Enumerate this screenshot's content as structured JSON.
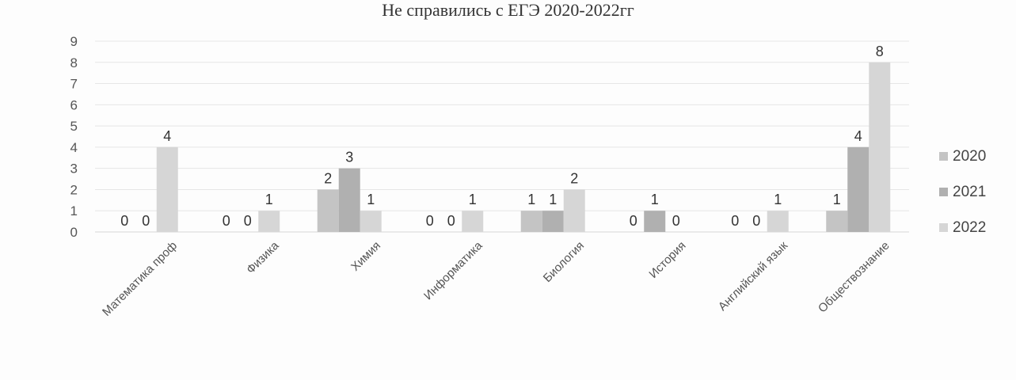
{
  "chart_data": {
    "type": "bar",
    "title": "Не справились с ЕГЭ 2020-2022гг",
    "xlabel": "",
    "ylabel": "",
    "ylim": [
      0,
      9
    ],
    "yticks": [
      "0",
      "1",
      "2",
      "3",
      "4",
      "5",
      "6",
      "7",
      "8",
      "9"
    ],
    "grid": true,
    "legend_position": "right",
    "categories": [
      "Математика проф",
      "Физика",
      "Химия",
      "Информатика",
      "Биология",
      "История",
      "Английский язык",
      "Обществознание"
    ],
    "series": [
      {
        "name": "2020",
        "color": "#c4c4c4",
        "values": [
          0,
          0,
          2,
          0,
          1,
          0,
          0,
          1
        ]
      },
      {
        "name": "2021",
        "color": "#b0b0b0",
        "values": [
          0,
          0,
          3,
          0,
          1,
          1,
          0,
          4
        ]
      },
      {
        "name": "2022",
        "color": "#d6d6d6",
        "values": [
          4,
          1,
          1,
          1,
          2,
          0,
          1,
          8
        ]
      }
    ]
  }
}
